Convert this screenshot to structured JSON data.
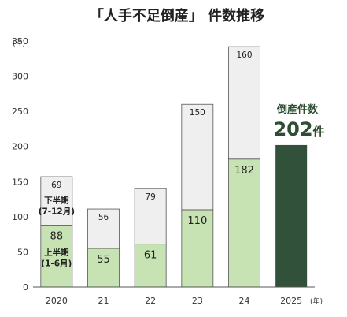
{
  "chart_data": {
    "type": "bar",
    "stacked": true,
    "title": "「人手不足倒産」 件数推移",
    "y_unit": "(件)",
    "x_unit": "(年)",
    "ylim": [
      0,
      350
    ],
    "yticks": [
      0,
      50,
      100,
      150,
      200,
      250,
      300,
      350
    ],
    "categories": [
      "2020",
      "21",
      "22",
      "23",
      "24",
      "2025"
    ],
    "series": [
      {
        "name": "上半期\n(1-6月)",
        "values": [
          88,
          55,
          61,
          110,
          182,
          null
        ],
        "color": "#c8e3b3"
      },
      {
        "name": "下半期\n(7-12月)",
        "values": [
          69,
          56,
          79,
          150,
          160,
          null
        ],
        "color": "#efefef"
      }
    ],
    "total_2025": 202,
    "total_2025_color": "#32513a",
    "callout": {
      "label": "倒産件数",
      "value": "202",
      "unit": "件"
    },
    "annotations": {
      "lower_half": [
        "上半期",
        "(1-6月)"
      ],
      "upper_half": [
        "下半期",
        "(7-12月)"
      ]
    },
    "grid": false
  }
}
